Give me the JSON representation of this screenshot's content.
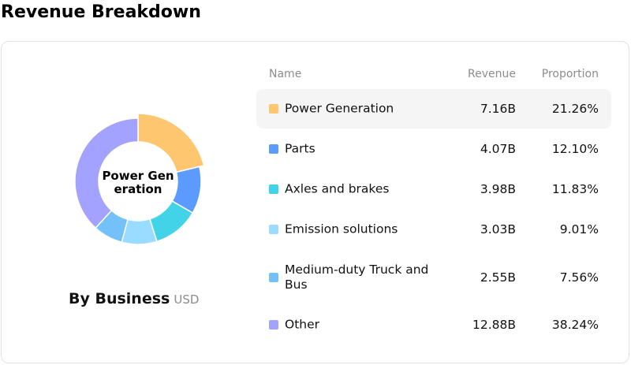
{
  "header": {
    "title": "Revenue Breakdown"
  },
  "chart_data": {
    "type": "pie",
    "variant": "donut",
    "center_label": "Power Generation",
    "subtitle": "By Business",
    "unit": "USD",
    "categories": [
      "Power Generation",
      "Parts",
      "Axles and brakes",
      "Emission solutions",
      "Medium-duty Truck and Bus",
      "Other"
    ],
    "values": [
      7.16,
      4.07,
      3.98,
      3.03,
      2.55,
      12.88
    ],
    "value_labels": [
      "7.16B",
      "4.07B",
      "3.98B",
      "3.03B",
      "2.55B",
      "12.88B"
    ],
    "proportions": [
      "21.26%",
      "12.10%",
      "11.83%",
      "9.01%",
      "7.56%",
      "38.24%"
    ],
    "colors": [
      "#ffc670",
      "#5b9bff",
      "#42d3e8",
      "#9adcff",
      "#74c1f9",
      "#a3a2ff"
    ],
    "highlighted_index": 0
  },
  "table": {
    "headers": {
      "name": "Name",
      "revenue": "Revenue",
      "proportion": "Proportion"
    }
  }
}
